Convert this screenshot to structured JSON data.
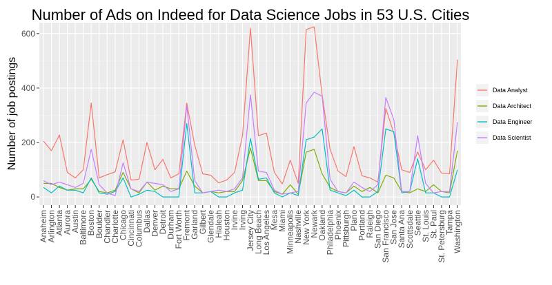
{
  "chart_data": {
    "type": "line",
    "title": "Number of Ads on Indeed for Data Science Jobs in 53 U.S. Cities",
    "xlabel": "",
    "ylabel": "Number of job postings",
    "ylim": [
      -30,
      640
    ],
    "yticks": [
      0,
      200,
      400,
      600
    ],
    "grid": true,
    "legend_position": "right",
    "categories": [
      "Anaheim",
      "Arlington",
      "Atlanta",
      "Aurora",
      "Austin",
      "Baltimore",
      "Boston",
      "Boulder",
      "Chandler",
      "Charlotte",
      "Chicago",
      "Cincinnati",
      "Columbus",
      "Dallas",
      "Denver",
      "Detroit",
      "Durham",
      "Fort Worth",
      "Fremont",
      "Garland",
      "Gilbert",
      "Glendale",
      "Hialeah",
      "Houston",
      "Irvine",
      "Irving",
      "Jersey City",
      "Long Beach",
      "Los Angeles",
      "Mesa",
      "Miami",
      "Minneapolis",
      "Nashville",
      "New York",
      "Newark",
      "Oakland",
      "Philadelphia",
      "Phoenix",
      "Pittsburgh",
      "Plano",
      "Portland",
      "Raleigh",
      "San Diego",
      "San Francisco",
      "San Jose",
      "Santa Ana",
      "Scottsdale",
      "Seattle",
      "St. Louis",
      "St. Paul",
      "St. Petersburg",
      "Tampa",
      "Washington"
    ],
    "series": [
      {
        "name": "Data Analyst",
        "color": "#F8766D",
        "values": [
          205,
          170,
          228,
          90,
          70,
          100,
          345,
          70,
          82,
          92,
          210,
          62,
          65,
          200,
          100,
          138,
          70,
          85,
          345,
          190,
          85,
          80,
          52,
          62,
          90,
          225,
          620,
          225,
          235,
          90,
          48,
          135,
          50,
          615,
          625,
          375,
          175,
          95,
          75,
          185,
          78,
          70,
          55,
          325,
          235,
          100,
          90,
          165,
          100,
          135,
          88,
          85,
          505
        ]
      },
      {
        "name": "Data Architect",
        "color": "#7CAE00",
        "values": [
          50,
          50,
          35,
          25,
          30,
          30,
          65,
          20,
          15,
          25,
          90,
          30,
          15,
          55,
          25,
          40,
          30,
          30,
          95,
          40,
          15,
          20,
          15,
          20,
          20,
          60,
          180,
          60,
          60,
          20,
          10,
          45,
          10,
          165,
          175,
          85,
          35,
          20,
          15,
          40,
          20,
          35,
          15,
          80,
          70,
          20,
          15,
          30,
          20,
          45,
          20,
          15,
          170
        ]
      },
      {
        "name": "Data Engineer",
        "color": "#00BFC4",
        "values": [
          35,
          15,
          40,
          25,
          25,
          15,
          70,
          15,
          10,
          20,
          70,
          0,
          10,
          25,
          20,
          0,
          0,
          0,
          270,
          15,
          15,
          20,
          0,
          0,
          15,
          25,
          215,
          65,
          70,
          15,
          0,
          15,
          5,
          210,
          220,
          250,
          25,
          15,
          5,
          25,
          0,
          0,
          20,
          250,
          240,
          15,
          20,
          140,
          15,
          15,
          0,
          0,
          100
        ]
      },
      {
        "name": "Data Scientist",
        "color": "#C77CFF",
        "values": [
          60,
          45,
          55,
          45,
          35,
          50,
          175,
          45,
          15,
          5,
          125,
          30,
          20,
          55,
          50,
          45,
          20,
          30,
          335,
          60,
          15,
          20,
          25,
          20,
          30,
          70,
          375,
          95,
          90,
          25,
          10,
          15,
          20,
          345,
          385,
          370,
          65,
          20,
          15,
          55,
          35,
          20,
          45,
          365,
          285,
          20,
          20,
          225,
          50,
          15,
          20,
          20,
          275
        ]
      }
    ]
  }
}
